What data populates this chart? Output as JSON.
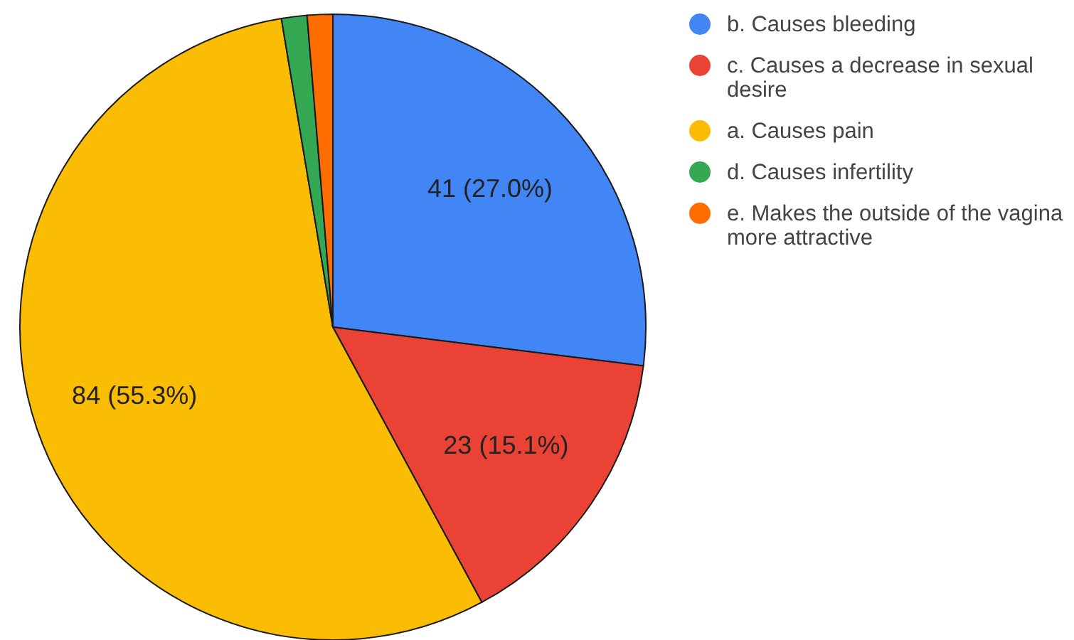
{
  "chart_data": {
    "type": "pie",
    "categories": [
      "b. Causes bleeding",
      "c. Causes a decrease in sexual desire",
      "a. Causes pain",
      "d. Causes infertility",
      "e. Makes the outside of the vagina more attractive"
    ],
    "values": [
      41,
      23,
      84,
      2,
      2
    ],
    "colors": [
      "#4285f4",
      "#ea4335",
      "#fbbc04",
      "#34a853",
      "#ff6d01"
    ],
    "value_labels": [
      "41 (27.0%)",
      "23 (15.1%)",
      "84 (55.3%)",
      null,
      null
    ],
    "legend": "top right"
  }
}
